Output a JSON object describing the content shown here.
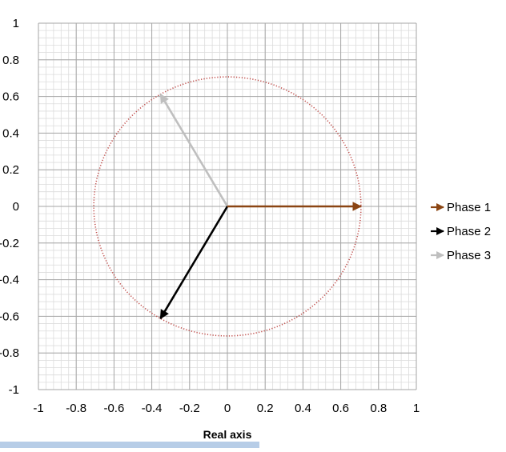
{
  "chart_data": {
    "type": "scatter",
    "xlabel": "Real axis",
    "ylabel": "",
    "xlim": [
      -1,
      1
    ],
    "ylim": [
      -1,
      1
    ],
    "grid": true,
    "minor_grid": true,
    "x_ticks": [
      -1,
      -0.8,
      -0.6,
      -0.4,
      -0.2,
      0,
      0.2,
      0.4,
      0.6,
      0.8,
      1
    ],
    "x_tick_labels": [
      "-1",
      "-0.8",
      "-0.6",
      "-0.4",
      "-0.2",
      "0",
      "0.2",
      "0.4",
      "0.6",
      "0.8",
      "1"
    ],
    "y_ticks": [
      1,
      0.8,
      0.6,
      0.4,
      0.2,
      0,
      -0.2,
      -0.4,
      -0.6,
      -0.8,
      -1
    ],
    "y_tick_labels": [
      "1",
      "0.8",
      "0.6",
      "0.4",
      "0.2",
      "0",
      "-0.2",
      "-0.4",
      "-0.6",
      "-0.8",
      "-1"
    ],
    "circle": {
      "center": [
        0,
        0
      ],
      "radius": 0.707,
      "style": "dotted",
      "color": "#c0504d"
    },
    "series": [
      {
        "name": "Phase 1",
        "color": "#8b4513",
        "x": [
          0,
          0.707
        ],
        "y": [
          0,
          0
        ]
      },
      {
        "name": "Phase 2",
        "color": "#000000",
        "x": [
          0,
          -0.354
        ],
        "y": [
          0,
          -0.612
        ]
      },
      {
        "name": "Phase 3",
        "color": "#bfbfbf",
        "x": [
          0,
          -0.354
        ],
        "y": [
          0,
          0.612
        ]
      }
    ],
    "legend_position": "right"
  }
}
